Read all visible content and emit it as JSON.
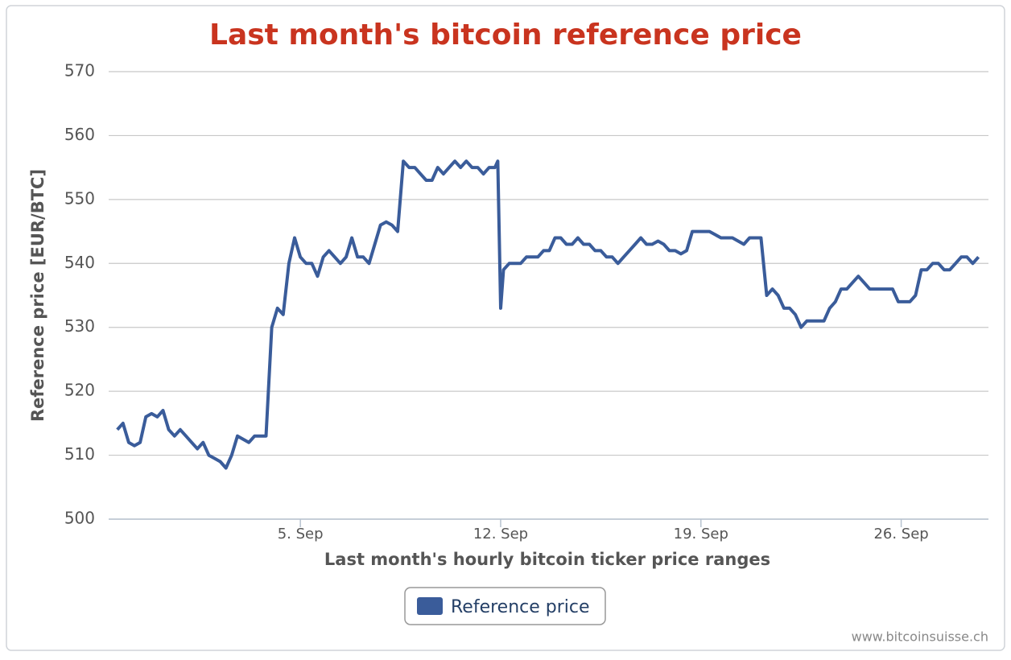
{
  "chart_data": {
    "type": "line",
    "title": "Last month's bitcoin reference price",
    "x_label": "Last month's hourly bitcoin ticker price ranges",
    "y_label": "Reference price [EUR/BTC]",
    "credit": "www.bitcoinsuisse.ch",
    "xlim": [
      -1.7,
      29.05
    ],
    "xticks": [
      {
        "value": 5,
        "label": "5. Sep"
      },
      {
        "value": 12,
        "label": "12. Sep"
      },
      {
        "value": 19,
        "label": "19. Sep"
      },
      {
        "value": 26,
        "label": "26. Sep"
      }
    ],
    "ylim": [
      500,
      570
    ],
    "yticks": [
      500,
      510,
      520,
      530,
      540,
      550,
      560,
      570
    ],
    "grid": true,
    "legend": "bottom",
    "series": [
      {
        "name": "Reference price",
        "color": "#3a5c9a",
        "x": [
          -1.4,
          -1.2,
          -1.0,
          -0.8,
          -0.6,
          -0.4,
          -0.2,
          0,
          0.2,
          0.4,
          0.6,
          0.8,
          1.0,
          1.2,
          1.4,
          1.6,
          1.8,
          2.0,
          2.2,
          2.4,
          2.6,
          2.8,
          3.0,
          3.2,
          3.4,
          3.6,
          3.8,
          4.0,
          4.2,
          4.4,
          4.6,
          4.8,
          5.0,
          5.2,
          5.4,
          5.6,
          5.8,
          6.0,
          6.2,
          6.4,
          6.6,
          6.8,
          7.0,
          7.2,
          7.4,
          7.6,
          7.8,
          8.0,
          8.2,
          8.4,
          8.6,
          8.8,
          9.0,
          9.2,
          9.4,
          9.6,
          9.8,
          10.0,
          10.2,
          10.4,
          10.6,
          10.8,
          11.0,
          11.2,
          11.4,
          11.6,
          11.8,
          11.9,
          12.0,
          12.1,
          12.3,
          12.5,
          12.7,
          12.9,
          13.1,
          13.3,
          13.5,
          13.7,
          13.9,
          14.1,
          14.3,
          14.5,
          14.7,
          14.9,
          15.1,
          15.3,
          15.5,
          15.7,
          15.9,
          16.1,
          16.3,
          16.5,
          16.7,
          16.9,
          17.1,
          17.3,
          17.5,
          17.7,
          17.9,
          18.1,
          18.3,
          18.5,
          18.7,
          18.9,
          19.1,
          19.3,
          19.5,
          19.7,
          19.9,
          20.1,
          20.3,
          20.5,
          20.7,
          20.9,
          21.1,
          21.3,
          21.5,
          21.7,
          21.9,
          22.1,
          22.3,
          22.5,
          22.7,
          22.9,
          23.1,
          23.3,
          23.5,
          23.7,
          23.9,
          24.1,
          24.3,
          24.5,
          24.7,
          24.9,
          25.1,
          25.3,
          25.5,
          25.7,
          25.9,
          26.1,
          26.3,
          26.5,
          26.7,
          26.9,
          27.1,
          27.3,
          27.5,
          27.7,
          27.9,
          28.1,
          28.3,
          28.5,
          28.7
        ],
        "values": [
          514,
          515,
          512,
          511.5,
          512,
          516,
          516.5,
          516,
          517,
          514,
          513,
          514,
          513,
          512,
          511,
          512,
          510,
          509.5,
          509,
          508,
          510,
          513,
          512.5,
          512,
          513,
          513,
          513,
          530,
          533,
          532,
          540,
          544,
          541,
          540,
          540,
          538,
          541,
          542,
          541,
          540,
          541,
          544,
          541,
          541,
          540,
          543,
          546,
          546.5,
          546,
          545,
          556,
          555,
          555,
          554,
          553,
          553,
          555,
          554,
          555,
          556,
          555,
          556,
          555,
          555,
          554,
          555,
          555,
          556,
          533,
          539,
          540,
          540,
          540,
          541,
          541,
          541,
          542,
          542,
          544,
          544,
          543,
          543,
          544,
          543,
          543,
          542,
          542,
          541,
          541,
          540,
          541,
          542,
          543,
          544,
          543,
          543,
          543.5,
          543,
          542,
          542,
          541.5,
          542,
          545,
          545,
          545,
          545,
          544.5,
          544,
          544,
          544,
          543.5,
          543,
          544,
          544,
          544,
          535,
          536,
          535,
          533,
          533,
          532,
          530,
          531,
          531,
          531,
          531,
          533,
          534,
          536,
          536,
          537,
          538,
          537,
          536,
          536,
          536,
          536,
          536,
          534,
          534,
          534,
          535,
          539,
          539,
          540,
          540,
          539,
          539,
          540,
          541,
          541,
          540,
          541
        ]
      }
    ]
  }
}
